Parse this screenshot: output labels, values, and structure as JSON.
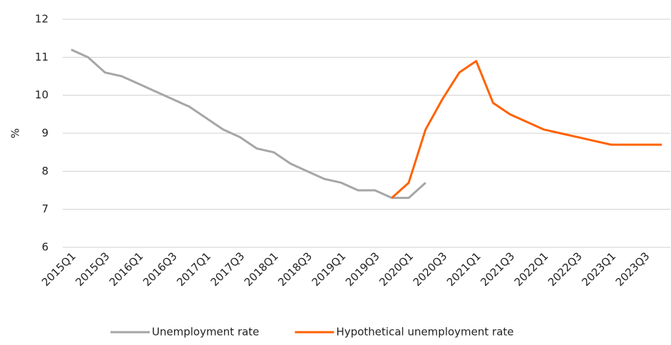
{
  "chart_data": {
    "type": "line",
    "y_label": "%",
    "categories": [
      "2015Q1",
      null,
      "2015Q3",
      null,
      "2016Q1",
      null,
      "2016Q3",
      null,
      "2017Q1",
      null,
      "2017Q3",
      null,
      "2018Q1",
      null,
      "2018Q3",
      null,
      "2019Q1",
      null,
      "2019Q3",
      null,
      "2020Q1",
      null,
      "2020Q3",
      null,
      "2021Q1",
      null,
      "2021Q3",
      null,
      "2022Q1",
      null,
      "2022Q3",
      null,
      "2023Q1",
      null,
      "2023Q3",
      null
    ],
    "series": [
      {
        "name": "Unemployment rate",
        "color": "#a6a6a6",
        "values": [
          11.2,
          11.0,
          10.6,
          10.5,
          10.3,
          10.1,
          9.9,
          9.7,
          9.4,
          9.1,
          8.9,
          8.6,
          8.5,
          8.2,
          8.0,
          7.8,
          7.7,
          7.5,
          7.5,
          7.3,
          7.3,
          7.7,
          null,
          null,
          null,
          null,
          null,
          null,
          null,
          null,
          null,
          null,
          null,
          null,
          null,
          null
        ]
      },
      {
        "name": "Hypothetical unemployment rate",
        "color": "#ff6200",
        "values": [
          null,
          null,
          null,
          null,
          null,
          null,
          null,
          null,
          null,
          null,
          null,
          null,
          null,
          null,
          null,
          null,
          null,
          null,
          null,
          7.3,
          7.7,
          9.1,
          9.9,
          10.6,
          10.9,
          9.8,
          9.5,
          9.3,
          9.1,
          9.0,
          8.9,
          8.8,
          8.7,
          8.7,
          8.7,
          8.7
        ]
      }
    ],
    "ylim": [
      6,
      12
    ],
    "yticks": [
      6,
      7,
      8,
      9,
      10,
      11,
      12
    ],
    "grid": true,
    "legend": "bottom"
  }
}
